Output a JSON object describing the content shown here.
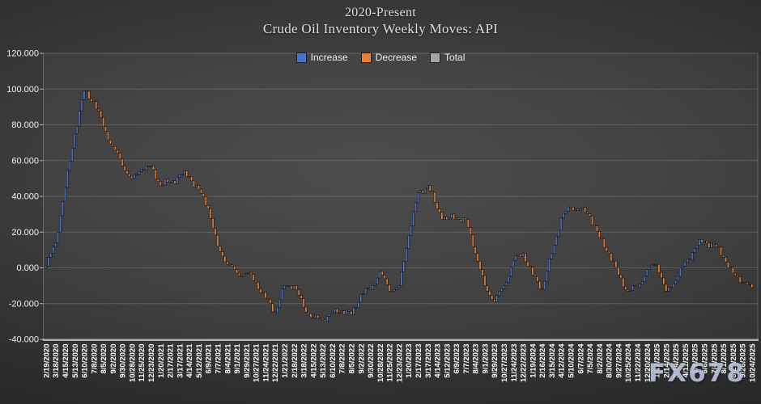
{
  "title": {
    "line1": "2020-Present",
    "line2": "Crude Oil Inventory Weekly Moves: API"
  },
  "watermark": "FX678",
  "legend": {
    "items": [
      {
        "label": "Increase",
        "color": "#4472c4"
      },
      {
        "label": "Decrease",
        "color": "#ed7d31"
      },
      {
        "label": "Total",
        "color": "#a5a5a5"
      }
    ]
  },
  "chart_data": {
    "type": "bar",
    "subtype": "weekly-waterfall-cumulative",
    "title": "2020-Present Crude Oil Inventory Weekly Moves: API",
    "legend_entries": [
      "Increase",
      "Decrease",
      "Total"
    ],
    "legend_position": "top-center",
    "grid": true,
    "x_labels_rotated": true,
    "ylim": [
      -40,
      120
    ],
    "ytick_values": [
      120,
      100,
      80,
      60,
      40,
      20,
      0,
      -20,
      -40
    ],
    "ytick_labels": [
      "120.000",
      "100.000",
      "80.000",
      "60.000",
      "40.000",
      "20.000",
      "0.000",
      "-20.000",
      "-40.000"
    ],
    "colors": {
      "increase": "#4472c4",
      "decrease": "#ed7d31",
      "total": "#a5a5a5"
    },
    "weeks_between_ticks": 4,
    "x_tick_dates": [
      "2/19/2020",
      "3/18/2020",
      "4/15/2020",
      "5/13/2020",
      "6/10/2020",
      "7/8/2020",
      "8/5/2020",
      "9/2/2020",
      "9/30/2020",
      "10/28/2020",
      "11/25/2020",
      "12/23/2020",
      "1/20/2021",
      "2/17/2021",
      "3/17/2021",
      "4/14/2021",
      "5/12/2021",
      "6/9/2021",
      "7/7/2021",
      "8/4/2021",
      "9/1/2021",
      "9/29/2021",
      "10/27/2021",
      "11/24/2021",
      "12/22/2021",
      "1/21/2022",
      "2/18/2022",
      "3/18/2022",
      "4/15/2022",
      "5/13/2022",
      "6/10/2022",
      "7/8/2022",
      "8/5/2022",
      "9/2/2022",
      "9/30/2022",
      "10/28/2022",
      "11/25/2022",
      "12/23/2022",
      "1/20/2023",
      "2/17/2023",
      "3/17/2023",
      "4/14/2023",
      "5/12/2023",
      "6/9/2023",
      "7/7/2023",
      "8/4/2023",
      "9/1/2023",
      "9/29/2023",
      "10/27/2023",
      "11/24/2023",
      "12/22/2023",
      "1/19/2024",
      "2/16/2024",
      "3/15/2024",
      "4/12/2024",
      "5/10/2024",
      "6/7/2024",
      "7/5/2024",
      "8/2/2024",
      "8/30/2024",
      "9/27/2024",
      "10/25/2024",
      "11/22/2024",
      "12/20/2024",
      "1/17/2025",
      "2/14/2025",
      "3/14/2025",
      "4/11/2025",
      "5/9/2025",
      "6/6/2025",
      "7/4/2025",
      "8/1/2025",
      "8/29/2025",
      "9/26/2025",
      "10/24/2025"
    ],
    "cumulative_at_ticks": [
      1,
      14,
      45,
      75,
      99,
      93,
      79,
      68,
      57,
      50,
      55,
      57,
      46,
      48,
      52,
      51,
      44,
      33,
      12,
      2,
      -3,
      -3,
      -8,
      -17,
      -25,
      -10,
      -10,
      -22,
      -28,
      -29,
      -25,
      -24,
      -26,
      -15,
      -12,
      -2,
      -13,
      -10,
      18,
      42,
      46,
      33,
      27,
      28,
      27,
      8,
      -10,
      -19,
      -10,
      4,
      8,
      -4,
      -12,
      8,
      28,
      34,
      33,
      29,
      17,
      8,
      -4,
      -13,
      -11,
      -1,
      2,
      -13,
      -7,
      3,
      11,
      15,
      13,
      6,
      -3,
      -8,
      -11
    ]
  }
}
